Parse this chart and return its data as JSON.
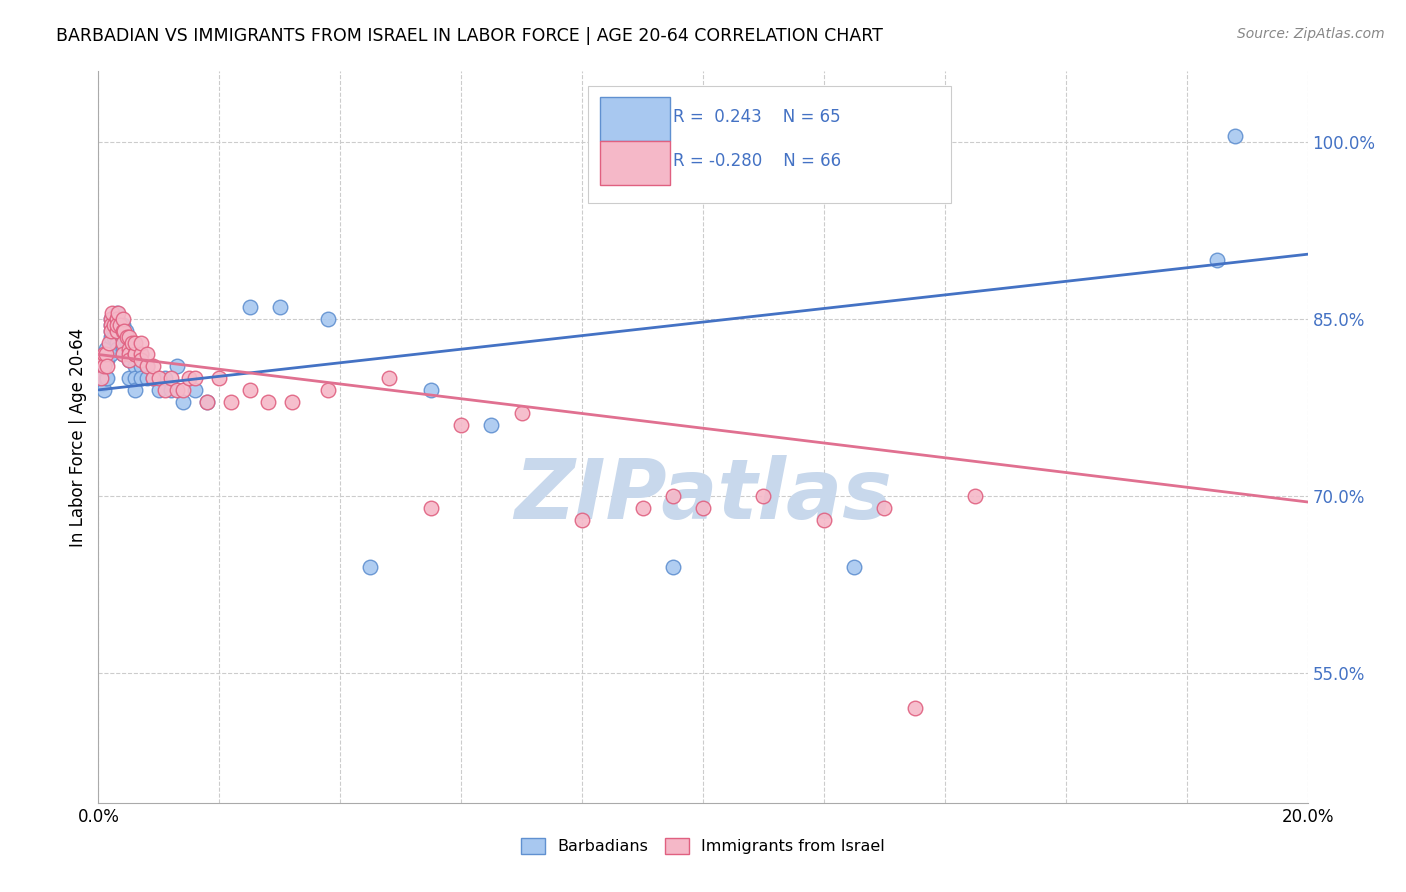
{
  "title": "BARBADIAN VS IMMIGRANTS FROM ISRAEL IN LABOR FORCE | AGE 20-64 CORRELATION CHART",
  "source": "Source: ZipAtlas.com",
  "ylabel": "In Labor Force | Age 20-64",
  "xlim": [
    0.0,
    0.2
  ],
  "ylim": [
    0.44,
    1.06
  ],
  "xticks": [
    0.0,
    0.02,
    0.04,
    0.06,
    0.08,
    0.1,
    0.12,
    0.14,
    0.16,
    0.18,
    0.2
  ],
  "ytick_positions": [
    0.55,
    0.7,
    0.85,
    1.0
  ],
  "blue_color": "#A8C8F0",
  "pink_color": "#F5B8C8",
  "blue_edge_color": "#6090D0",
  "pink_edge_color": "#E06080",
  "blue_line_color": "#4472C4",
  "pink_line_color": "#E07090",
  "watermark": "ZIPatlas",
  "watermark_color": "#C8D8EC",
  "blue_scatter_x": [
    0.0006,
    0.0008,
    0.001,
    0.001,
    0.0012,
    0.0012,
    0.0015,
    0.0015,
    0.002,
    0.002,
    0.002,
    0.002,
    0.002,
    0.0022,
    0.0025,
    0.0025,
    0.003,
    0.003,
    0.003,
    0.003,
    0.003,
    0.003,
    0.0032,
    0.0035,
    0.004,
    0.004,
    0.004,
    0.004,
    0.004,
    0.0042,
    0.0045,
    0.0048,
    0.005,
    0.005,
    0.005,
    0.005,
    0.005,
    0.0055,
    0.006,
    0.006,
    0.006,
    0.006,
    0.007,
    0.007,
    0.007,
    0.008,
    0.008,
    0.009,
    0.01,
    0.011,
    0.012,
    0.013,
    0.014,
    0.016,
    0.018,
    0.025,
    0.03,
    0.038,
    0.045,
    0.055,
    0.065,
    0.095,
    0.125,
    0.185,
    0.188
  ],
  "blue_scatter_y": [
    0.795,
    0.8,
    0.79,
    0.81,
    0.8,
    0.825,
    0.8,
    0.815,
    0.835,
    0.845,
    0.84,
    0.85,
    0.82,
    0.85,
    0.84,
    0.835,
    0.855,
    0.85,
    0.845,
    0.84,
    0.83,
    0.825,
    0.84,
    0.845,
    0.84,
    0.845,
    0.83,
    0.825,
    0.82,
    0.835,
    0.84,
    0.83,
    0.83,
    0.825,
    0.82,
    0.815,
    0.8,
    0.82,
    0.81,
    0.82,
    0.8,
    0.79,
    0.82,
    0.81,
    0.8,
    0.81,
    0.8,
    0.8,
    0.79,
    0.8,
    0.79,
    0.81,
    0.78,
    0.79,
    0.78,
    0.86,
    0.86,
    0.85,
    0.64,
    0.79,
    0.76,
    0.64,
    0.64,
    0.9,
    1.005
  ],
  "pink_scatter_x": [
    0.0005,
    0.0008,
    0.001,
    0.001,
    0.0012,
    0.0015,
    0.0018,
    0.002,
    0.002,
    0.002,
    0.0022,
    0.0025,
    0.003,
    0.003,
    0.003,
    0.003,
    0.0032,
    0.0035,
    0.004,
    0.004,
    0.004,
    0.004,
    0.0042,
    0.0048,
    0.005,
    0.005,
    0.005,
    0.005,
    0.0055,
    0.006,
    0.006,
    0.006,
    0.007,
    0.007,
    0.007,
    0.008,
    0.008,
    0.009,
    0.009,
    0.01,
    0.011,
    0.012,
    0.013,
    0.014,
    0.015,
    0.016,
    0.018,
    0.02,
    0.022,
    0.025,
    0.028,
    0.032,
    0.038,
    0.048,
    0.055,
    0.06,
    0.07,
    0.08,
    0.09,
    0.095,
    0.1,
    0.11,
    0.12,
    0.13,
    0.135,
    0.145
  ],
  "pink_scatter_y": [
    0.8,
    0.815,
    0.82,
    0.81,
    0.82,
    0.81,
    0.83,
    0.85,
    0.845,
    0.84,
    0.855,
    0.845,
    0.85,
    0.84,
    0.85,
    0.845,
    0.855,
    0.845,
    0.84,
    0.85,
    0.83,
    0.82,
    0.84,
    0.835,
    0.825,
    0.835,
    0.82,
    0.815,
    0.83,
    0.82,
    0.82,
    0.83,
    0.82,
    0.815,
    0.83,
    0.81,
    0.82,
    0.8,
    0.81,
    0.8,
    0.79,
    0.8,
    0.79,
    0.79,
    0.8,
    0.8,
    0.78,
    0.8,
    0.78,
    0.79,
    0.78,
    0.78,
    0.79,
    0.8,
    0.69,
    0.76,
    0.77,
    0.68,
    0.69,
    0.7,
    0.69,
    0.7,
    0.68,
    0.69,
    0.52,
    0.7
  ],
  "blue_trend_x": [
    0.0,
    0.2
  ],
  "blue_trend_y": [
    0.79,
    0.905
  ],
  "pink_trend_x": [
    0.0,
    0.2
  ],
  "pink_trend_y": [
    0.82,
    0.695
  ]
}
